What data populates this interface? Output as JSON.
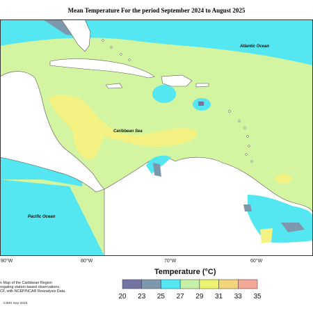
{
  "title": "Mean Temperature For the period September 2024 to August 2025",
  "map": {
    "labels": {
      "atlantic": "Atlantic Ocean",
      "caribbean": "Caribbean Sea",
      "pacific": "Pacific Ocean"
    },
    "longitudes": [
      "90°W",
      "80°W",
      "70°W",
      "60°W"
    ]
  },
  "legend": {
    "title": "Temperature (°C)",
    "ticks": [
      "20",
      "23",
      "25",
      "27",
      "29",
      "31",
      "33",
      "35"
    ],
    "colors": [
      "#7474a0",
      "#7d97ad",
      "#55e7f1",
      "#c6f0a8",
      "#ecf270",
      "#f2d57c",
      "#f3a898"
    ]
  },
  "notes": {
    "line1": "n Map of the Caribbean Region",
    "line2": "regating station based observations,",
    "line3": "CF, with NCEP/NCAR Reanalysis Data."
  },
  "credit": "CIMH Sep-2025",
  "colors": {
    "land": "#ffffff",
    "sea_warm": "#d3f5a1",
    "sea_cool": "#55e7f1",
    "hot": "#f4f283",
    "cold": "#7d97ad"
  }
}
